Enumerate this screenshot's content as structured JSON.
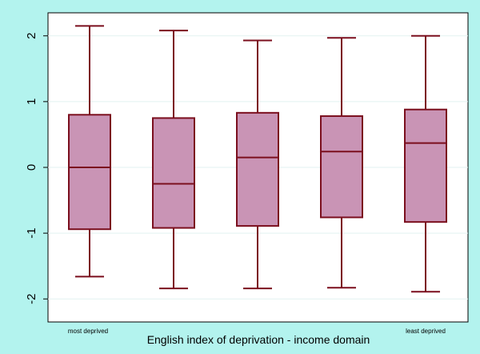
{
  "colors": {
    "background": "#b3f3ee",
    "plot_background": "#ffffff",
    "box_fill": "#c994b5",
    "box_stroke": "#7b0f1e",
    "gridline": "#e2f2f1",
    "axis": "#000000"
  },
  "chart_data": {
    "type": "box",
    "xlabel": "English index of deprivation - income domain",
    "x_tick_labels": {
      "left": "most deprived",
      "right": "least deprived"
    },
    "ylabel": "",
    "ylim": [
      -2.35,
      2.35
    ],
    "y_ticks": [
      -2,
      -1,
      0,
      1,
      2
    ],
    "y_tick_labels": [
      "-2",
      "-1",
      "0",
      "1",
      "2"
    ],
    "grid": true,
    "legend": "none",
    "groups": [
      {
        "whisker_low": -1.66,
        "q1": -0.94,
        "median": 0.0,
        "q3": 0.8,
        "whisker_high": 2.15
      },
      {
        "whisker_low": -1.84,
        "q1": -0.92,
        "median": -0.25,
        "q3": 0.75,
        "whisker_high": 2.08
      },
      {
        "whisker_low": -1.84,
        "q1": -0.89,
        "median": 0.15,
        "q3": 0.83,
        "whisker_high": 1.93
      },
      {
        "whisker_low": -1.83,
        "q1": -0.76,
        "median": 0.24,
        "q3": 0.78,
        "whisker_high": 1.97
      },
      {
        "whisker_low": -1.89,
        "q1": -0.83,
        "median": 0.37,
        "q3": 0.88,
        "whisker_high": 2.0
      }
    ]
  }
}
